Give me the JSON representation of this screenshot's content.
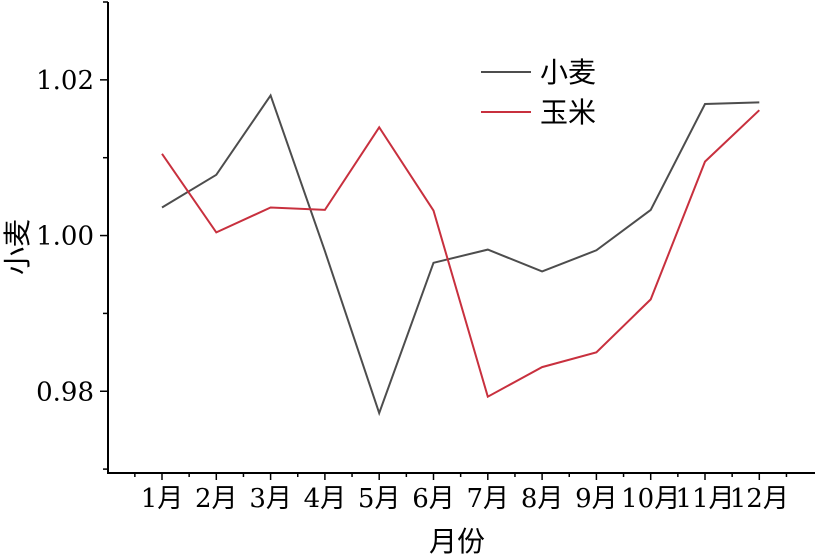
{
  "chart_data": {
    "type": "line",
    "title": "",
    "xlabel": "月份",
    "ylabel": "小麦",
    "categories": [
      "1月",
      "2月",
      "3月",
      "4月",
      "5月",
      "6月",
      "7月",
      "8月",
      "9月",
      "10月",
      "11月",
      "12月"
    ],
    "ylim": [
      0.9695,
      1.03
    ],
    "yticks": [
      0.98,
      1.0,
      1.02
    ],
    "ytick_labels": [
      "0.98",
      "1.00",
      "1.02"
    ],
    "grid": false,
    "legend_position": "top-right",
    "series": [
      {
        "name": "小麦",
        "color": "#4d4d4d",
        "values": [
          1.0036,
          1.0078,
          1.018,
          0.998,
          0.9772,
          0.9965,
          0.9982,
          0.9954,
          0.9981,
          1.0033,
          1.0169,
          1.0171
        ]
      },
      {
        "name": "玉米",
        "color": "#c8303e",
        "values": [
          1.0105,
          1.0004,
          1.0036,
          1.0033,
          1.0139,
          1.0032,
          0.9793,
          0.9831,
          0.985,
          0.9918,
          1.0095,
          1.0161
        ]
      }
    ]
  }
}
